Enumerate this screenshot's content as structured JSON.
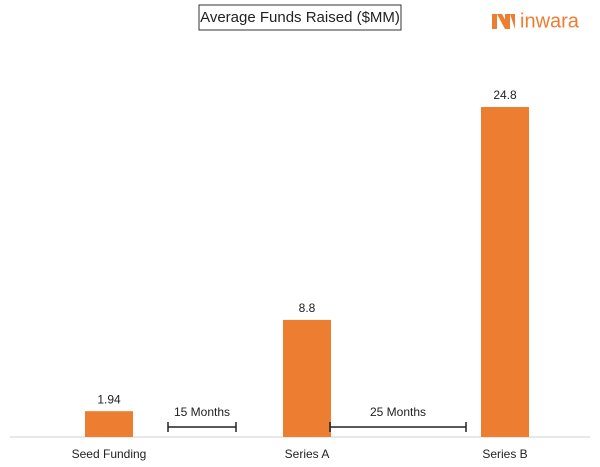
{
  "chart_data": {
    "type": "bar",
    "title": "Average Funds Raised ($MM)",
    "brand": "inwara",
    "categories": [
      "Seed Funding",
      "Series A",
      "Series B"
    ],
    "values": [
      1.94,
      8.8,
      24.8
    ],
    "color": "#ed7d31",
    "annotations": [
      "15 Months",
      "25 Months"
    ]
  }
}
